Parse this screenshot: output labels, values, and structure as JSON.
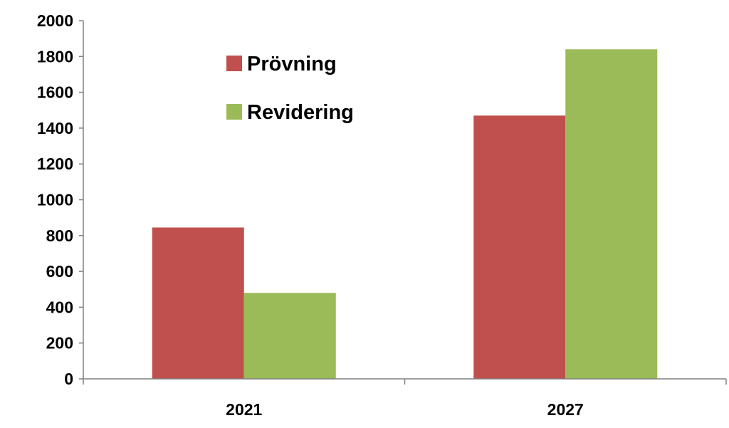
{
  "chart_data": {
    "type": "bar",
    "title": "",
    "xlabel": "",
    "ylabel": "",
    "categories": [
      "2021",
      "2027"
    ],
    "series": [
      {
        "name": "Prövning",
        "color": "#C0504D",
        "values": [
          845,
          1470
        ]
      },
      {
        "name": "Revidering",
        "color": "#9BBB59",
        "values": [
          480,
          1840
        ]
      }
    ],
    "ylim": [
      0,
      2000
    ],
    "yticks": [
      0,
      200,
      400,
      600,
      800,
      1000,
      1200,
      1400,
      1600,
      1800,
      2000
    ],
    "grid": false,
    "legend_position": "top-left-inside"
  }
}
